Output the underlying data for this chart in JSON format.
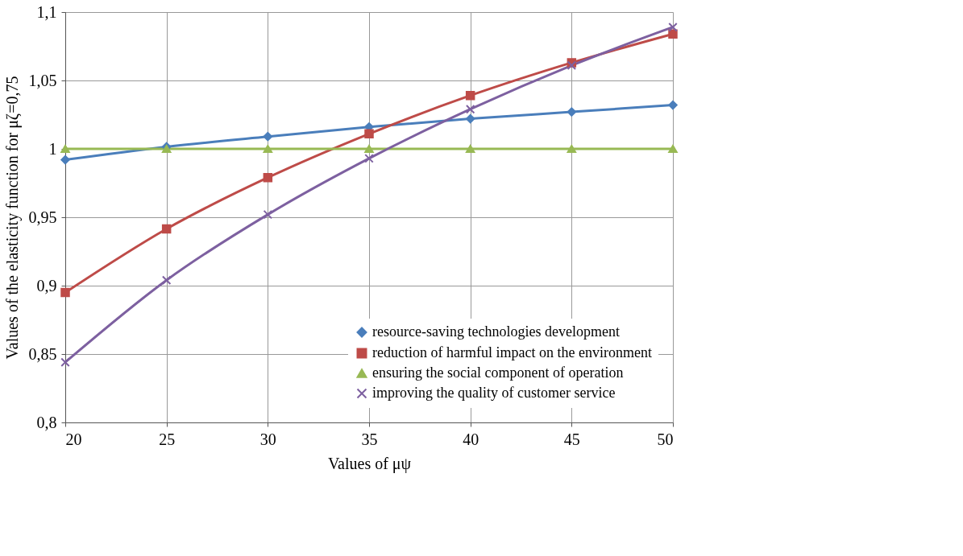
{
  "chart_data": {
    "type": "line",
    "xlabel": "Values of μψ",
    "ylabel": "Values of the elasticity  function for μζ=0,75",
    "x": [
      20,
      25,
      30,
      35,
      40,
      45,
      50
    ],
    "series": [
      {
        "name": "resource-saving technologies development",
        "color": "#4a7ebb",
        "marker": "diamond",
        "values": [
          0.992,
          1.0015,
          1.009,
          1.016,
          1.022,
          1.027,
          1.032
        ]
      },
      {
        "name": "reduction of harmful impact on the environment",
        "color": "#be4b48",
        "marker": "square",
        "values": [
          0.895,
          0.9415,
          0.979,
          1.011,
          1.039,
          1.063,
          1.084
        ]
      },
      {
        "name": "ensuring the social component of operation",
        "color": "#98b954",
        "marker": "triangle",
        "values": [
          1,
          1,
          1,
          1,
          1,
          1,
          1
        ]
      },
      {
        "name": "improving the quality of customer service",
        "color": "#7d60a0",
        "marker": "cross",
        "values": [
          0.844,
          0.904,
          0.952,
          0.993,
          1.029,
          1.061,
          1.089
        ]
      }
    ],
    "xlim": [
      20,
      50
    ],
    "xticks": [
      20,
      25,
      30,
      35,
      40,
      45,
      50
    ],
    "ylim": [
      0.8,
      1.1
    ],
    "yticks": [
      {
        "value": 0.8,
        "label": "0,8"
      },
      {
        "value": 0.85,
        "label": "0,85"
      },
      {
        "value": 0.9,
        "label": "0,9"
      },
      {
        "value": 0.95,
        "label": "0,95"
      },
      1,
      {
        "value": 1.05,
        "label": "1,05"
      },
      {
        "value": 1.1,
        "label": "1,1"
      }
    ],
    "grid": true,
    "legend": "bottom right",
    "line_style": "solid"
  }
}
